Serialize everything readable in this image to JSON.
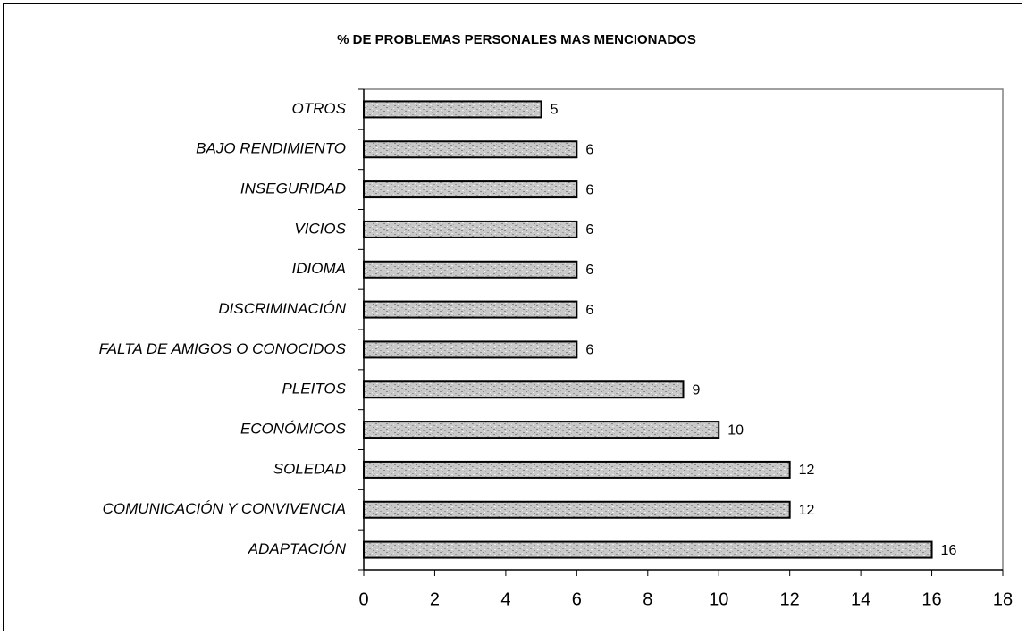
{
  "chart_data": {
    "type": "bar",
    "orientation": "horizontal",
    "title": "% DE PROBLEMAS PERSONALES MAS  MENCIONADOS",
    "categories": [
      "OTROS",
      "BAJO RENDIMIENTO",
      "INSEGURIDAD",
      "VICIOS",
      "IDIOMA",
      "DISCRIMINACIÓN",
      "FALTA DE AMIGOS O CONOCIDOS",
      "PLEITOS",
      "ECONÓMICOS",
      "SOLEDAD",
      "COMUNICACIÓN Y CONVIVENCIA",
      "ADAPTACIÓN"
    ],
    "values": [
      5,
      6,
      6,
      6,
      6,
      6,
      6,
      9,
      10,
      12,
      12,
      16
    ],
    "color": "#b4b4b4",
    "xlim": [
      0,
      18
    ],
    "xticks": [
      0,
      2,
      4,
      6,
      8,
      10,
      12,
      14,
      16,
      18
    ],
    "grid": false
  }
}
